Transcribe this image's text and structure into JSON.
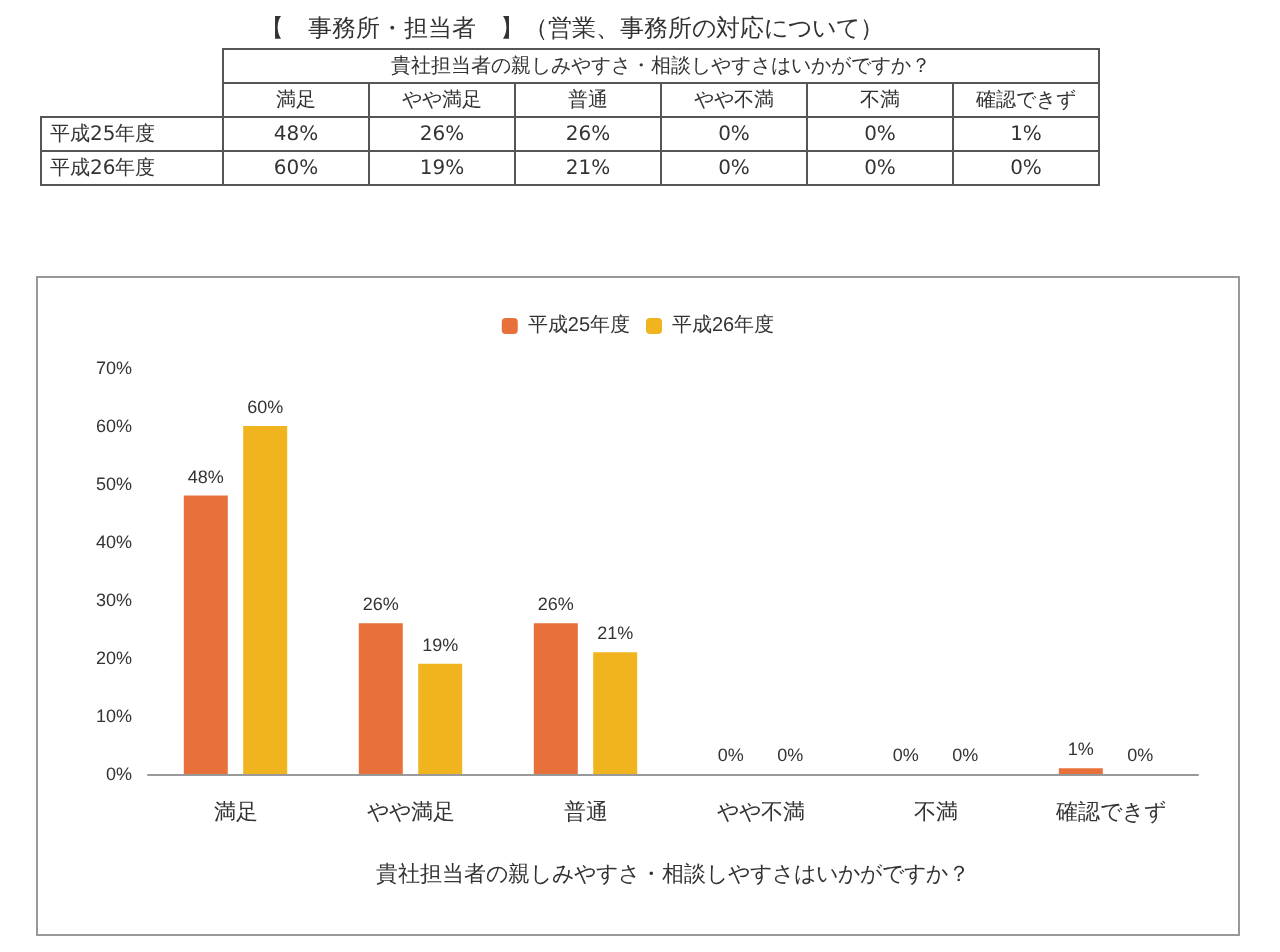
{
  "chart_data": {
    "type": "bar",
    "title": "【　事務所・担当者　】（営業、事務所の対応について）",
    "xlabel": "貴社担当者の親しみやすさ・相談しやすさはいかがですか？",
    "categories": [
      "満足",
      "やや満足",
      "普通",
      "やや不満",
      "不満",
      "確認できず"
    ],
    "series": [
      {
        "name": "平成25年度",
        "color": "#e8703a",
        "values": [
          48,
          26,
          26,
          0,
          0,
          1
        ],
        "value_labels": [
          "48%",
          "26%",
          "26%",
          "0%",
          "0%",
          "1%"
        ]
      },
      {
        "name": "平成26年度",
        "color": "#f0b51e",
        "values": [
          60,
          19,
          21,
          0,
          0,
          0
        ],
        "value_labels": [
          "60%",
          "19%",
          "21%",
          "0%",
          "0%",
          "0%"
        ]
      }
    ],
    "ylim": [
      0,
      70
    ],
    "yticks": [
      {
        "value": 0,
        "label": "0%"
      },
      {
        "value": 10,
        "label": "10%"
      },
      {
        "value": 20,
        "label": "20%"
      },
      {
        "value": 30,
        "label": "30%"
      },
      {
        "value": 40,
        "label": "40%"
      },
      {
        "value": 50,
        "label": "50%"
      },
      {
        "value": 60,
        "label": "60%"
      },
      {
        "value": 70,
        "label": "70%"
      }
    ],
    "grid": false,
    "legend": "top"
  }
}
